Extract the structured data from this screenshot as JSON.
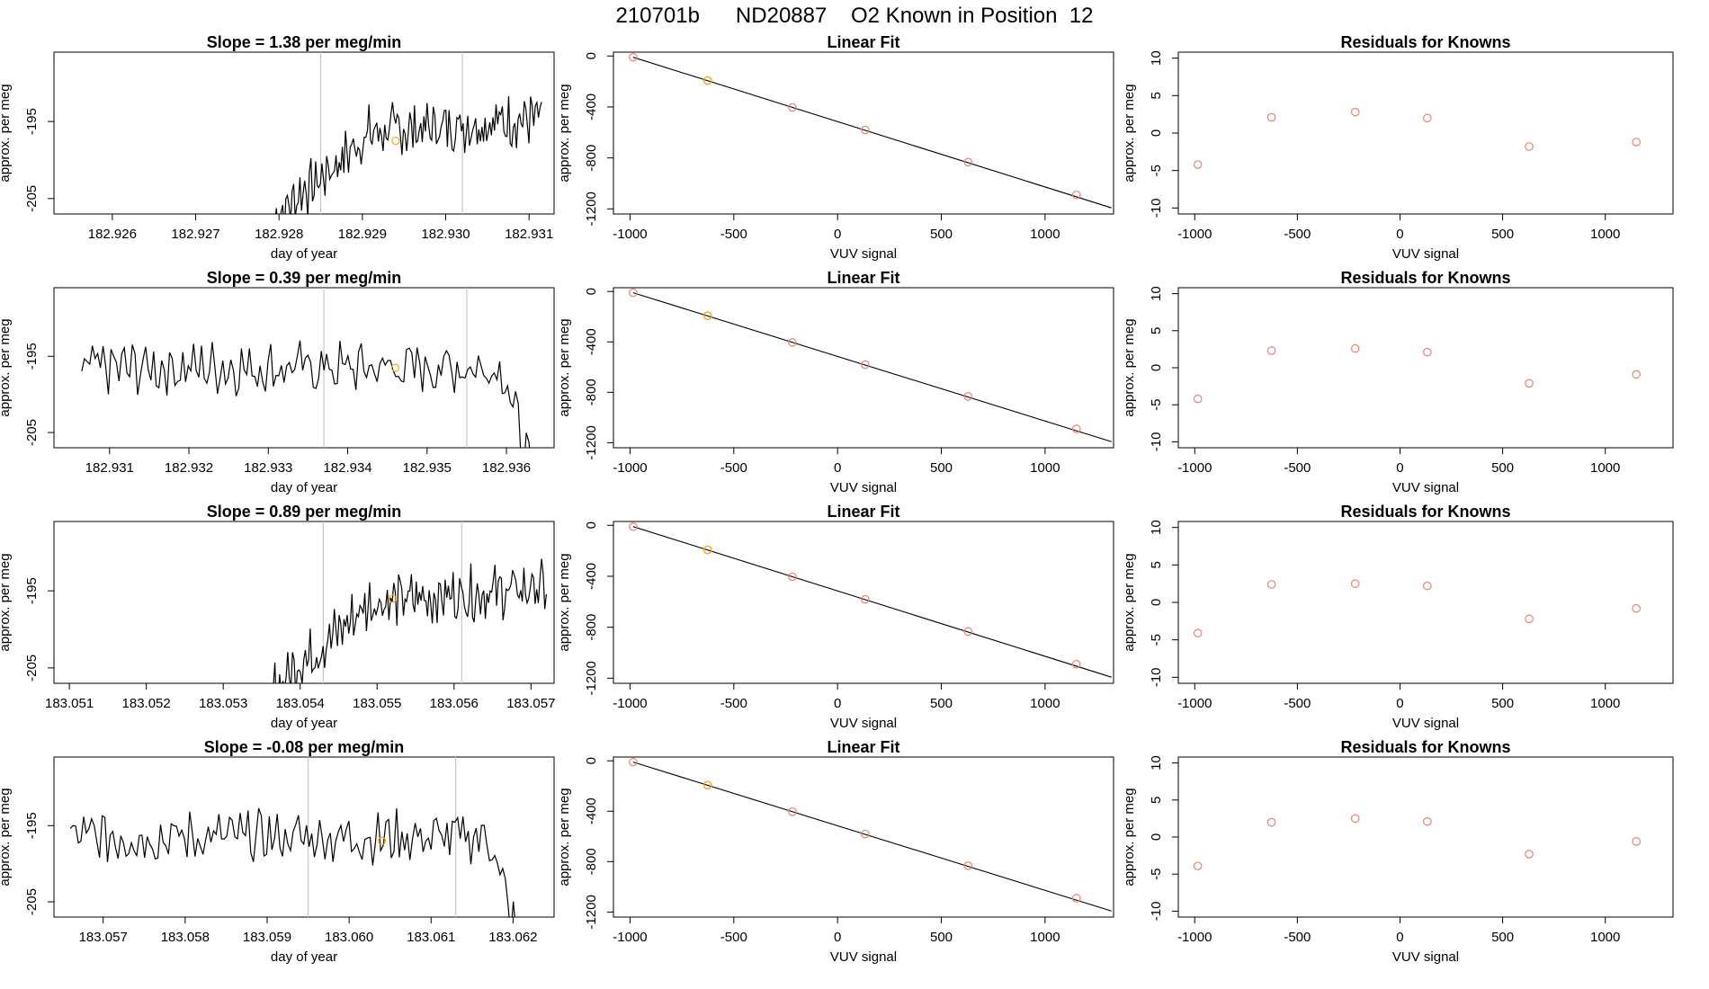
{
  "title": "210701b      ND20887    O2 Known in Position  12",
  "colors": {
    "line": "#000000",
    "point": "#e5837a",
    "known": "#f5a623",
    "ref": "#c8c8c8"
  },
  "chart_data": [
    {
      "type": "line",
      "title": "Slope =  1.38  per meg/min",
      "xlabel": "day of year",
      "ylabel": "approx. per meg",
      "xlim": [
        182.9253,
        182.9313
      ],
      "ylim": [
        -207,
        -186
      ],
      "xticks": [
        "182.926",
        "182.927",
        "182.928",
        "182.929",
        "182.930",
        "182.931"
      ],
      "yticks": [
        "-205",
        "-195"
      ],
      "ref_lines": [
        182.9285,
        182.9302
      ],
      "marker": [
        182.9294,
        -197.5
      ],
      "series": [
        {
          "trend": "rise",
          "x_start": 182.92795,
          "x_end": 182.93115
        }
      ]
    },
    {
      "type": "scatter",
      "title": "Linear Fit",
      "xlabel": "VUV signal",
      "ylabel": "approx. per meg",
      "xlim": [
        -1080,
        1330
      ],
      "ylim": [
        -1240,
        30
      ],
      "xticks": [
        "-1000",
        "-500",
        "0",
        "500",
        "1000"
      ],
      "yticks": [
        "0",
        "-400",
        "-800",
        "-1200"
      ],
      "x": [
        -985,
        -626,
        -218,
        133,
        629,
        1151
      ],
      "y": [
        -10,
        -193,
        -404,
        -581,
        -833,
        -1090
      ],
      "line": [
        [
          -985,
          -10
        ],
        [
          1320,
          -1192
        ]
      ]
    },
    {
      "type": "scatter",
      "title": "Residuals for Knowns",
      "xlabel": "VUV signal",
      "ylabel": "approx. per meg",
      "xlim": [
        -1080,
        1330
      ],
      "ylim": [
        -10.8,
        10.8
      ],
      "xticks": [
        "-1000",
        "-500",
        "0",
        "500",
        "1000"
      ],
      "yticks": [
        "10",
        "5",
        "0",
        "-5",
        "-10"
      ],
      "x": [
        -985,
        -626,
        -218,
        133,
        629,
        1151
      ],
      "y": [
        -4.2,
        2.1,
        2.8,
        2.0,
        -1.8,
        -1.2
      ]
    },
    {
      "type": "line",
      "title": "Slope =  0.39  per meg/min",
      "xlabel": "day of year",
      "ylabel": "approx. per meg",
      "xlim": [
        182.9303,
        182.9366
      ],
      "ylim": [
        -207,
        -186
      ],
      "xticks": [
        "182.931",
        "182.932",
        "182.933",
        "182.934",
        "182.935",
        "182.936"
      ],
      "yticks": [
        "-205",
        "-195"
      ],
      "ref_lines": [
        182.9337,
        182.9355
      ],
      "marker": [
        182.9346,
        -196.5
      ],
      "series": [
        {
          "trend": "flat_drop",
          "x_start": 182.93065,
          "x_end": 182.93635
        }
      ]
    },
    {
      "type": "scatter",
      "title": "Linear Fit",
      "xlabel": "VUV signal",
      "ylabel": "approx. per meg",
      "xlim": [
        -1080,
        1330
      ],
      "ylim": [
        -1240,
        30
      ],
      "xticks": [
        "-1000",
        "-500",
        "0",
        "500",
        "1000"
      ],
      "yticks": [
        "0",
        "-400",
        "-800",
        "-1200"
      ],
      "x": [
        -985,
        -626,
        -218,
        133,
        629,
        1151
      ],
      "y": [
        -10,
        -193,
        -404,
        -581,
        -833,
        -1090
      ],
      "line": [
        [
          -985,
          -10
        ],
        [
          1320,
          -1192
        ]
      ]
    },
    {
      "type": "scatter",
      "title": "Residuals for Knowns",
      "xlabel": "VUV signal",
      "ylabel": "approx. per meg",
      "xlim": [
        -1080,
        1330
      ],
      "ylim": [
        -10.8,
        10.8
      ],
      "xticks": [
        "-1000",
        "-500",
        "0",
        "500",
        "1000"
      ],
      "yticks": [
        "10",
        "5",
        "0",
        "-5",
        "-10"
      ],
      "x": [
        -985,
        -626,
        -218,
        133,
        629,
        1151
      ],
      "y": [
        -4.2,
        2.3,
        2.6,
        2.1,
        -2.1,
        -0.9
      ]
    },
    {
      "type": "line",
      "title": "Slope =  0.89  per meg/min",
      "xlabel": "day of year",
      "ylabel": "approx. per meg",
      "xlim": [
        183.0508,
        183.0573
      ],
      "ylim": [
        -207,
        -186
      ],
      "xticks": [
        "183.051",
        "183.052",
        "183.053",
        "183.054",
        "183.055",
        "183.056",
        "183.057"
      ],
      "yticks": [
        "-205",
        "-195"
      ],
      "ref_lines": [
        183.0543,
        183.0561
      ],
      "marker": [
        183.0552,
        -196
      ],
      "series": [
        {
          "trend": "rise",
          "x_start": 183.05365,
          "x_end": 183.0572
        }
      ]
    },
    {
      "type": "scatter",
      "title": "Linear Fit",
      "xlabel": "VUV signal",
      "ylabel": "approx. per meg",
      "xlim": [
        -1080,
        1330
      ],
      "ylim": [
        -1240,
        30
      ],
      "xticks": [
        "-1000",
        "-500",
        "0",
        "500",
        "1000"
      ],
      "yticks": [
        "0",
        "-400",
        "-800",
        "-1200"
      ],
      "x": [
        -985,
        -626,
        -218,
        133,
        629,
        1151
      ],
      "y": [
        -10,
        -193,
        -404,
        -581,
        -833,
        -1090
      ],
      "line": [
        [
          -985,
          -10
        ],
        [
          1320,
          -1192
        ]
      ]
    },
    {
      "type": "scatter",
      "title": "Residuals for Knowns",
      "xlabel": "VUV signal",
      "ylabel": "approx. per meg",
      "xlim": [
        -1080,
        1330
      ],
      "ylim": [
        -10.8,
        10.8
      ],
      "xticks": [
        "-1000",
        "-500",
        "0",
        "500",
        "1000"
      ],
      "yticks": [
        "10",
        "5",
        "0",
        "-5",
        "-10"
      ],
      "x": [
        -985,
        -626,
        -218,
        133,
        629,
        1151
      ],
      "y": [
        -4.1,
        2.4,
        2.5,
        2.2,
        -2.2,
        -0.8
      ]
    },
    {
      "type": "line",
      "title": "Slope =  -0.08  per meg/min",
      "xlabel": "day of year",
      "ylabel": "approx. per meg",
      "xlim": [
        183.0564,
        183.0625
      ],
      "ylim": [
        -207,
        -186
      ],
      "xticks": [
        "183.057",
        "183.058",
        "183.059",
        "183.060",
        "183.061",
        "183.062"
      ],
      "yticks": [
        "-205",
        "-195"
      ],
      "ref_lines": [
        183.0595,
        183.0613
      ],
      "marker": [
        183.0604,
        -197
      ],
      "series": [
        {
          "trend": "flat_drop",
          "x_start": 183.0566,
          "x_end": 183.0621
        }
      ]
    },
    {
      "type": "scatter",
      "title": "Linear Fit",
      "xlabel": "VUV signal",
      "ylabel": "approx. per meg",
      "xlim": [
        -1080,
        1330
      ],
      "ylim": [
        -1240,
        30
      ],
      "xticks": [
        "-1000",
        "-500",
        "0",
        "500",
        "1000"
      ],
      "yticks": [
        "0",
        "-400",
        "-800",
        "-1200"
      ],
      "x": [
        -985,
        -626,
        -218,
        133,
        629,
        1151
      ],
      "y": [
        -10,
        -193,
        -404,
        -581,
        -833,
        -1090
      ],
      "line": [
        [
          -985,
          -10
        ],
        [
          1320,
          -1192
        ]
      ]
    },
    {
      "type": "scatter",
      "title": "Residuals for Knowns",
      "xlabel": "VUV signal",
      "ylabel": "approx. per meg",
      "xlim": [
        -1080,
        1330
      ],
      "ylim": [
        -10.8,
        10.8
      ],
      "xticks": [
        "-1000",
        "-500",
        "0",
        "500",
        "1000"
      ],
      "yticks": [
        "10",
        "5",
        "0",
        "-5",
        "-10"
      ],
      "x": [
        -985,
        -626,
        -218,
        133,
        629,
        1151
      ],
      "y": [
        -3.9,
        2.0,
        2.5,
        2.1,
        -2.3,
        -0.6
      ]
    }
  ]
}
